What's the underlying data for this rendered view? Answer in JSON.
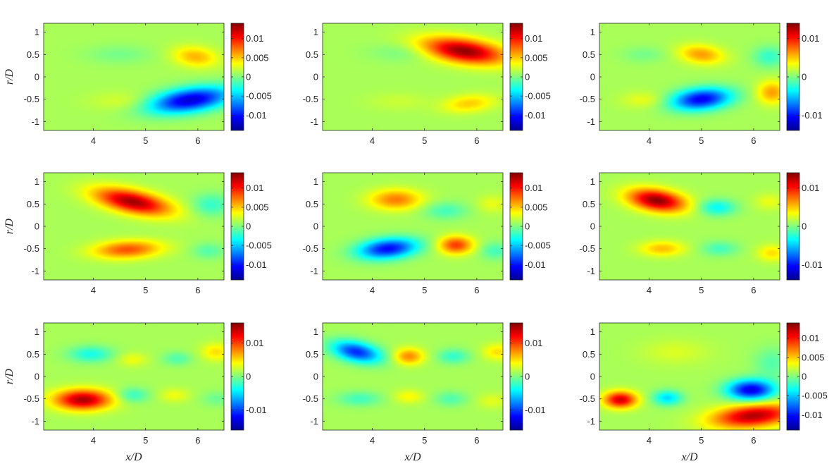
{
  "colors": {
    "colormap": [
      "#00008f",
      "#0000ff",
      "#0080ff",
      "#00ffff",
      "#80ff80",
      "#ffff00",
      "#ff8000",
      "#ff0000",
      "#800000"
    ],
    "field_background": "#8ced72",
    "axes": "#262626"
  },
  "chart_data": [
    {
      "type": "heatmap",
      "title": "",
      "xlabel": "",
      "ylabel": "r/D",
      "xlim": [
        3.05,
        6.5
      ],
      "ylim": [
        -1.2,
        1.2
      ],
      "xticks": [
        "4",
        "5",
        "6"
      ],
      "yticks": [
        "1",
        "0.5",
        "0",
        "-0.5",
        "-1"
      ],
      "colorbar": {
        "clim": [
          -0.014,
          0.014
        ],
        "ticks": [
          "0.01",
          "0.005",
          "0",
          "-0.005",
          "-0.01"
        ]
      },
      "features": [
        {
          "x": 5.85,
          "y": -0.52,
          "value": -0.014,
          "sx": 0.55,
          "sy": 0.19,
          "tilt": 0.15
        },
        {
          "x": 5.95,
          "y": 0.45,
          "value": 0.0048,
          "sx": 0.3,
          "sy": 0.16,
          "tilt": -0.1
        },
        {
          "x": 4.6,
          "y": -0.55,
          "value": 0.0015,
          "sx": 0.45,
          "sy": 0.15,
          "tilt": 0
        },
        {
          "x": 4.5,
          "y": 0.5,
          "value": -0.0015,
          "sx": 0.45,
          "sy": 0.15,
          "tilt": 0
        }
      ]
    },
    {
      "type": "heatmap",
      "title": "",
      "xlabel": "",
      "ylabel": "",
      "xlim": [
        3.05,
        6.5
      ],
      "ylim": [
        -1.2,
        1.2
      ],
      "xticks": [
        "4",
        "5",
        "6"
      ],
      "yticks": [
        "1",
        "0.5",
        "0",
        "-0.5",
        "-1"
      ],
      "colorbar": {
        "clim": [
          -0.014,
          0.014
        ],
        "ticks": [
          "0.01",
          "0.005",
          "0",
          "-0.005",
          "-0.01"
        ]
      },
      "features": [
        {
          "x": 5.75,
          "y": 0.58,
          "value": 0.0135,
          "sx": 0.55,
          "sy": 0.19,
          "tilt": -0.15
        },
        {
          "x": 5.85,
          "y": -0.6,
          "value": 0.004,
          "sx": 0.35,
          "sy": 0.14,
          "tilt": 0.1
        },
        {
          "x": 4.6,
          "y": 0.55,
          "value": -0.0015,
          "sx": 0.45,
          "sy": 0.15,
          "tilt": 0
        },
        {
          "x": 4.5,
          "y": -0.55,
          "value": 0.001,
          "sx": 0.4,
          "sy": 0.14,
          "tilt": 0
        }
      ]
    },
    {
      "type": "heatmap",
      "title": "",
      "xlabel": "",
      "ylabel": "",
      "xlim": [
        3.05,
        6.5
      ],
      "ylim": [
        -1.2,
        1.2
      ],
      "xticks": [
        "4",
        "5",
        "6"
      ],
      "yticks": [
        "1",
        "0.5",
        "0",
        "-0.5",
        "-1"
      ],
      "colorbar": {
        "clim": [
          -0.014,
          0.014
        ],
        "ticks": [
          "0.01",
          "0",
          "-0.01"
        ]
      },
      "features": [
        {
          "x": 5.0,
          "y": -0.5,
          "value": -0.013,
          "sx": 0.4,
          "sy": 0.17,
          "tilt": 0.1
        },
        {
          "x": 5.0,
          "y": 0.5,
          "value": 0.0055,
          "sx": 0.3,
          "sy": 0.15,
          "tilt": -0.1
        },
        {
          "x": 6.35,
          "y": -0.35,
          "value": 0.0055,
          "sx": 0.2,
          "sy": 0.18,
          "tilt": 0
        },
        {
          "x": 6.3,
          "y": 0.45,
          "value": -0.0035,
          "sx": 0.22,
          "sy": 0.17,
          "tilt": 0
        },
        {
          "x": 3.9,
          "y": -0.52,
          "value": 0.002,
          "sx": 0.3,
          "sy": 0.13,
          "tilt": 0
        },
        {
          "x": 3.9,
          "y": 0.5,
          "value": -0.0015,
          "sx": 0.3,
          "sy": 0.13,
          "tilt": 0
        }
      ]
    },
    {
      "type": "heatmap",
      "title": "",
      "xlabel": "",
      "ylabel": "r/D",
      "xlim": [
        3.05,
        6.5
      ],
      "ylim": [
        -1.2,
        1.2
      ],
      "xticks": [
        "4",
        "5",
        "6"
      ],
      "yticks": [
        "1",
        "0.5",
        "0",
        "-0.5",
        "-1"
      ],
      "colorbar": {
        "clim": [
          -0.014,
          0.014
        ],
        "ticks": [
          "0.01",
          "0.005",
          "0",
          "-0.005",
          "-0.01"
        ]
      },
      "features": [
        {
          "x": 4.75,
          "y": 0.55,
          "value": 0.013,
          "sx": 0.5,
          "sy": 0.18,
          "tilt": -0.22
        },
        {
          "x": 4.65,
          "y": -0.52,
          "value": 0.0078,
          "sx": 0.45,
          "sy": 0.14,
          "tilt": 0.05
        },
        {
          "x": 6.25,
          "y": 0.48,
          "value": -0.0035,
          "sx": 0.25,
          "sy": 0.18,
          "tilt": 0
        },
        {
          "x": 6.2,
          "y": -0.55,
          "value": -0.0025,
          "sx": 0.22,
          "sy": 0.13,
          "tilt": 0
        }
      ]
    },
    {
      "type": "heatmap",
      "title": "",
      "xlabel": "",
      "ylabel": "",
      "xlim": [
        3.05,
        6.5
      ],
      "ylim": [
        -1.2,
        1.2
      ],
      "xticks": [
        "4",
        "5",
        "6"
      ],
      "yticks": [
        "1",
        "0.5",
        "0",
        "-0.5",
        "-1"
      ],
      "colorbar": {
        "clim": [
          -0.014,
          0.014
        ],
        "ticks": [
          "0.01",
          "0.005",
          "0",
          "-0.005",
          "-0.01"
        ]
      },
      "features": [
        {
          "x": 4.3,
          "y": -0.5,
          "value": -0.0125,
          "sx": 0.4,
          "sy": 0.16,
          "tilt": 0.1
        },
        {
          "x": 4.45,
          "y": 0.6,
          "value": 0.0065,
          "sx": 0.35,
          "sy": 0.16,
          "tilt": 0
        },
        {
          "x": 5.6,
          "y": -0.42,
          "value": 0.0085,
          "sx": 0.23,
          "sy": 0.14,
          "tilt": 0
        },
        {
          "x": 5.4,
          "y": 0.35,
          "value": -0.003,
          "sx": 0.3,
          "sy": 0.14,
          "tilt": 0
        },
        {
          "x": 6.35,
          "y": -0.55,
          "value": -0.003,
          "sx": 0.2,
          "sy": 0.14,
          "tilt": 0
        },
        {
          "x": 6.3,
          "y": 0.5,
          "value": 0.002,
          "sx": 0.2,
          "sy": 0.14,
          "tilt": 0
        }
      ]
    },
    {
      "type": "heatmap",
      "title": "",
      "xlabel": "",
      "ylabel": "",
      "xlim": [
        3.05,
        6.5
      ],
      "ylim": [
        -1.2,
        1.2
      ],
      "xticks": [
        "4",
        "5",
        "6"
      ],
      "yticks": [
        "1",
        "0.5",
        "0",
        "-0.5",
        "-1"
      ],
      "colorbar": {
        "clim": [
          -0.014,
          0.014
        ],
        "ticks": [
          "0.01",
          "0",
          "-0.01"
        ]
      },
      "features": [
        {
          "x": 4.15,
          "y": 0.58,
          "value": 0.0135,
          "sx": 0.38,
          "sy": 0.17,
          "tilt": -0.15
        },
        {
          "x": 5.3,
          "y": 0.42,
          "value": -0.005,
          "sx": 0.25,
          "sy": 0.13,
          "tilt": 0
        },
        {
          "x": 4.25,
          "y": -0.5,
          "value": 0.0045,
          "sx": 0.3,
          "sy": 0.12,
          "tilt": 0
        },
        {
          "x": 5.35,
          "y": -0.5,
          "value": -0.003,
          "sx": 0.25,
          "sy": 0.12,
          "tilt": 0
        },
        {
          "x": 6.35,
          "y": -0.6,
          "value": 0.0035,
          "sx": 0.2,
          "sy": 0.13,
          "tilt": 0
        },
        {
          "x": 6.3,
          "y": 0.55,
          "value": 0.002,
          "sx": 0.2,
          "sy": 0.13,
          "tilt": 0
        }
      ]
    },
    {
      "type": "heatmap",
      "title": "",
      "xlabel": "x/D",
      "ylabel": "r/D",
      "xlim": [
        3.05,
        6.5
      ],
      "ylim": [
        -1.2,
        1.2
      ],
      "xticks": [
        "4",
        "5",
        "6"
      ],
      "yticks": [
        "1",
        "0.5",
        "0",
        "-0.5",
        "-1"
      ],
      "colorbar": {
        "clim": [
          -0.016,
          0.016
        ],
        "ticks": [
          "0.01",
          "0",
          "-0.01"
        ]
      },
      "features": [
        {
          "x": 3.8,
          "y": -0.52,
          "value": 0.0145,
          "sx": 0.38,
          "sy": 0.16,
          "tilt": 0
        },
        {
          "x": 3.95,
          "y": 0.5,
          "value": -0.005,
          "sx": 0.3,
          "sy": 0.13,
          "tilt": 0
        },
        {
          "x": 4.75,
          "y": -0.42,
          "value": -0.004,
          "sx": 0.22,
          "sy": 0.12,
          "tilt": 0
        },
        {
          "x": 4.75,
          "y": 0.38,
          "value": 0.0025,
          "sx": 0.2,
          "sy": 0.11,
          "tilt": 0
        },
        {
          "x": 5.55,
          "y": -0.42,
          "value": 0.0025,
          "sx": 0.2,
          "sy": 0.11,
          "tilt": 0
        },
        {
          "x": 5.6,
          "y": 0.4,
          "value": -0.003,
          "sx": 0.2,
          "sy": 0.11,
          "tilt": 0
        },
        {
          "x": 6.35,
          "y": 0.55,
          "value": 0.004,
          "sx": 0.2,
          "sy": 0.14,
          "tilt": 0
        },
        {
          "x": 6.35,
          "y": -0.5,
          "value": -0.002,
          "sx": 0.2,
          "sy": 0.12,
          "tilt": 0
        }
      ]
    },
    {
      "type": "heatmap",
      "title": "",
      "xlabel": "x/D",
      "ylabel": "",
      "xlim": [
        3.05,
        6.5
      ],
      "ylim": [
        -1.2,
        1.2
      ],
      "xticks": [
        "4",
        "5",
        "6"
      ],
      "yticks": [
        "1",
        "0.5",
        "0",
        "-0.5",
        "-1"
      ],
      "colorbar": {
        "clim": [
          -0.016,
          0.016
        ],
        "ticks": [
          "0.01",
          "0",
          "-0.01"
        ]
      },
      "features": [
        {
          "x": 3.7,
          "y": 0.55,
          "value": -0.013,
          "sx": 0.33,
          "sy": 0.16,
          "tilt": -0.2
        },
        {
          "x": 4.7,
          "y": 0.45,
          "value": 0.007,
          "sx": 0.2,
          "sy": 0.13,
          "tilt": 0
        },
        {
          "x": 5.55,
          "y": 0.45,
          "value": -0.004,
          "sx": 0.22,
          "sy": 0.12,
          "tilt": 0
        },
        {
          "x": 6.4,
          "y": 0.55,
          "value": 0.004,
          "sx": 0.2,
          "sy": 0.13,
          "tilt": 0
        },
        {
          "x": 3.75,
          "y": -0.5,
          "value": -0.0035,
          "sx": 0.3,
          "sy": 0.12,
          "tilt": 0
        },
        {
          "x": 4.7,
          "y": -0.45,
          "value": 0.003,
          "sx": 0.2,
          "sy": 0.11,
          "tilt": 0
        },
        {
          "x": 5.5,
          "y": -0.5,
          "value": -0.003,
          "sx": 0.22,
          "sy": 0.12,
          "tilt": 0
        },
        {
          "x": 6.3,
          "y": -0.55,
          "value": 0.002,
          "sx": 0.2,
          "sy": 0.12,
          "tilt": 0
        }
      ]
    },
    {
      "type": "heatmap",
      "title": "",
      "xlabel": "x/D",
      "ylabel": "",
      "xlim": [
        3.05,
        6.5
      ],
      "ylim": [
        -1.2,
        1.2
      ],
      "xticks": [
        "4",
        "5",
        "6"
      ],
      "yticks": [
        "1",
        "0.5",
        "0",
        "-0.5",
        "-1"
      ],
      "colorbar": {
        "clim": [
          -0.014,
          0.014
        ],
        "ticks": [
          "0.01",
          "0.005",
          "0",
          "-0.005",
          "-0.01"
        ]
      },
      "features": [
        {
          "x": 5.95,
          "y": -0.3,
          "value": -0.0135,
          "sx": 0.32,
          "sy": 0.16,
          "tilt": 0
        },
        {
          "x": 6.0,
          "y": -0.88,
          "value": 0.0125,
          "sx": 0.55,
          "sy": 0.18,
          "tilt": 0.1
        },
        {
          "x": 3.45,
          "y": -0.52,
          "value": 0.0115,
          "sx": 0.22,
          "sy": 0.13,
          "tilt": 0
        },
        {
          "x": 4.35,
          "y": -0.48,
          "value": -0.006,
          "sx": 0.2,
          "sy": 0.12,
          "tilt": 0
        },
        {
          "x": 6.35,
          "y": 0.3,
          "value": -0.0025,
          "sx": 0.25,
          "sy": 0.25,
          "tilt": 0
        },
        {
          "x": 4.5,
          "y": 0.55,
          "value": 0.0015,
          "sx": 0.45,
          "sy": 0.2,
          "tilt": 0
        }
      ]
    }
  ]
}
